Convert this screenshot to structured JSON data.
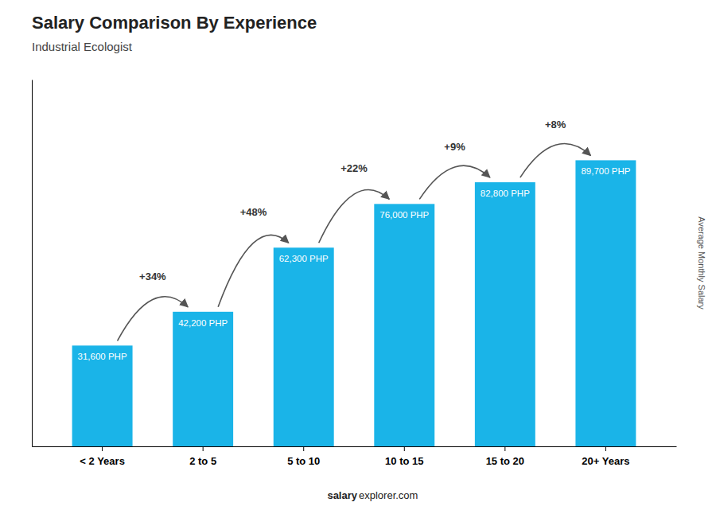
{
  "chart_data": {
    "type": "bar",
    "title": "Salary Comparison By Experience",
    "subtitle": "Industrial Ecologist",
    "ylabel": "Average Monthly Salary",
    "categories": [
      "< 2 Years",
      "2 to 5",
      "5 to 10",
      "10 to 15",
      "15 to 20",
      "20+ Years"
    ],
    "values": [
      31600,
      42200,
      62300,
      76000,
      82800,
      89700
    ],
    "value_labels": [
      "31,600 PHP",
      "42,200 PHP",
      "62,300 PHP",
      "76,000 PHP",
      "82,800 PHP",
      "89,700 PHP"
    ],
    "data_labels": true,
    "annotations": [
      "+34%",
      "+48%",
      "+22%",
      "+9%",
      "+8%"
    ],
    "footer": [
      "salary",
      "explorer.com"
    ],
    "color": "#1ab4e8",
    "ylim": [
      0,
      115000
    ],
    "tick_labels": "x",
    "grid": false
  }
}
